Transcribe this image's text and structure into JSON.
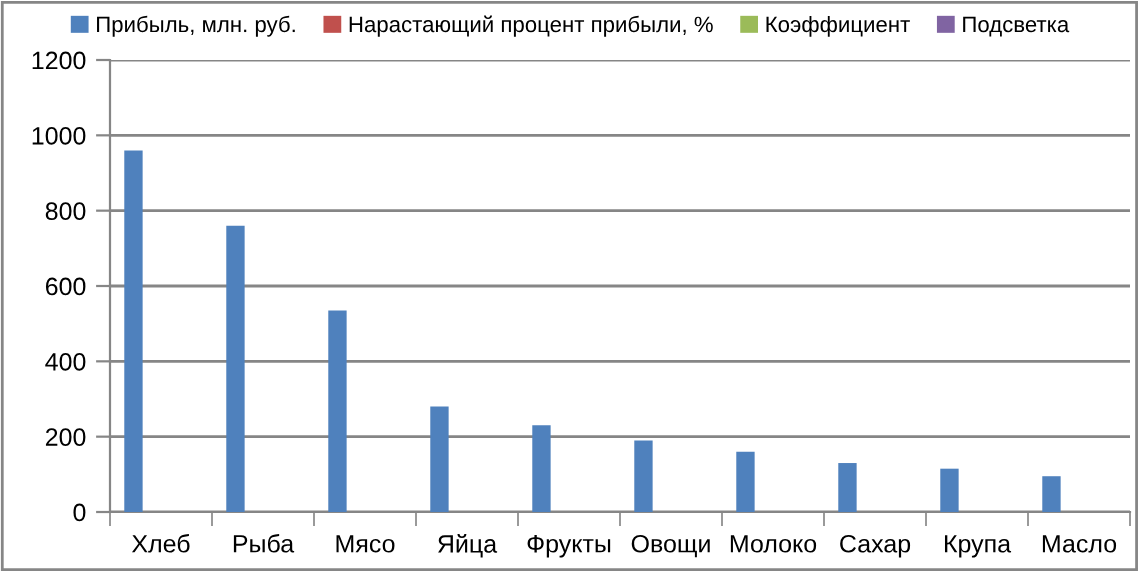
{
  "chart_data": {
    "type": "bar",
    "categories": [
      "Хлеб",
      "Рыба",
      "Мясо",
      "Яйца",
      "Фрукты",
      "Овощи",
      "Молоко",
      "Сахар",
      "Крупа",
      "Масло"
    ],
    "series": [
      {
        "name": "Прибыль, млн. руб.",
        "color": "#4f81bd",
        "values": [
          960,
          760,
          535,
          280,
          230,
          190,
          160,
          130,
          115,
          95
        ]
      },
      {
        "name": "Нарастающий процент прибыли, %",
        "color": "#c0504d",
        "values": [
          null,
          null,
          null,
          null,
          null,
          null,
          null,
          null,
          null,
          null
        ]
      },
      {
        "name": "Коэффициент",
        "color": "#9bbb59",
        "values": [
          null,
          null,
          null,
          null,
          null,
          null,
          null,
          null,
          null,
          null
        ]
      },
      {
        "name": "Подсветка",
        "color": "#8064a2",
        "values": [
          null,
          null,
          null,
          null,
          null,
          null,
          null,
          null,
          null,
          null
        ]
      }
    ],
    "ylim": [
      0,
      1200
    ],
    "yticks": [
      0,
      200,
      400,
      600,
      800,
      1000,
      1200
    ],
    "grid": "y",
    "legend": "top"
  }
}
